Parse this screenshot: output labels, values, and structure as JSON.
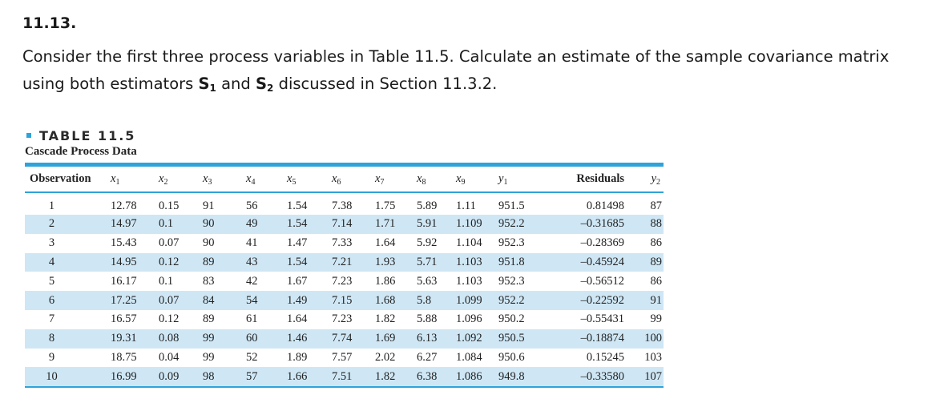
{
  "problem": {
    "number": "11.13.",
    "line1": "Consider the first three process variables in Table 11.5. Calculate an estimate of the sample covariance matrix",
    "line2_prefix": "using both estimators ",
    "s1_letter": "S",
    "s1_sub": "1",
    "line2_and": " and ",
    "s2_letter": "S",
    "s2_sub": "2",
    "line2_suffix": " discussed in Section 11.3.2."
  },
  "table": {
    "title": "TABLE 11.5",
    "caption": "Cascade Process Data",
    "accent_color": "#2ea3d9",
    "stripe_color": "#cfe7f5",
    "headers": {
      "observation": "Observation",
      "x1": "x",
      "x1_sub": "1",
      "x2": "x",
      "x2_sub": "2",
      "x3": "x",
      "x3_sub": "3",
      "x4": "x",
      "x4_sub": "4",
      "x5": "x",
      "x5_sub": "5",
      "x6": "x",
      "x6_sub": "6",
      "x7": "x",
      "x7_sub": "7",
      "x8": "x",
      "x8_sub": "8",
      "x9": "x",
      "x9_sub": "9",
      "y1": "y",
      "y1_sub": "1",
      "residuals": "Residuals",
      "y2": "y",
      "y2_sub": "2"
    },
    "rows": [
      {
        "obs": "1",
        "x1": "12.78",
        "x2": "0.15",
        "x3": "91",
        "x4": "56",
        "x5": "1.54",
        "x6": "7.38",
        "x7": "1.75",
        "x8": "5.89",
        "x9": "1.11",
        "y1": "951.5",
        "res": "0.81498",
        "y2": "87"
      },
      {
        "obs": "2",
        "x1": "14.97",
        "x2": "0.1",
        "x3": "90",
        "x4": "49",
        "x5": "1.54",
        "x6": "7.14",
        "x7": "1.71",
        "x8": "5.91",
        "x9": "1.109",
        "y1": "952.2",
        "res": "–0.31685",
        "y2": "88"
      },
      {
        "obs": "3",
        "x1": "15.43",
        "x2": "0.07",
        "x3": "90",
        "x4": "41",
        "x5": "1.47",
        "x6": "7.33",
        "x7": "1.64",
        "x8": "5.92",
        "x9": "1.104",
        "y1": "952.3",
        "res": "–0.28369",
        "y2": "86"
      },
      {
        "obs": "4",
        "x1": "14.95",
        "x2": "0.12",
        "x3": "89",
        "x4": "43",
        "x5": "1.54",
        "x6": "7.21",
        "x7": "1.93",
        "x8": "5.71",
        "x9": "1.103",
        "y1": "951.8",
        "res": "–0.45924",
        "y2": "89"
      },
      {
        "obs": "5",
        "x1": "16.17",
        "x2": "0.1",
        "x3": "83",
        "x4": "42",
        "x5": "1.67",
        "x6": "7.23",
        "x7": "1.86",
        "x8": "5.63",
        "x9": "1.103",
        "y1": "952.3",
        "res": "–0.56512",
        "y2": "86"
      },
      {
        "obs": "6",
        "x1": "17.25",
        "x2": "0.07",
        "x3": "84",
        "x4": "54",
        "x5": "1.49",
        "x6": "7.15",
        "x7": "1.68",
        "x8": "5.8",
        "x9": "1.099",
        "y1": "952.2",
        "res": "–0.22592",
        "y2": "91"
      },
      {
        "obs": "7",
        "x1": "16.57",
        "x2": "0.12",
        "x3": "89",
        "x4": "61",
        "x5": "1.64",
        "x6": "7.23",
        "x7": "1.82",
        "x8": "5.88",
        "x9": "1.096",
        "y1": "950.2",
        "res": "–0.55431",
        "y2": "99"
      },
      {
        "obs": "8",
        "x1": "19.31",
        "x2": "0.08",
        "x3": "99",
        "x4": "60",
        "x5": "1.46",
        "x6": "7.74",
        "x7": "1.69",
        "x8": "6.13",
        "x9": "1.092",
        "y1": "950.5",
        "res": "–0.18874",
        "y2": "100"
      },
      {
        "obs": "9",
        "x1": "18.75",
        "x2": "0.04",
        "x3": "99",
        "x4": "52",
        "x5": "1.89",
        "x6": "7.57",
        "x7": "2.02",
        "x8": "6.27",
        "x9": "1.084",
        "y1": "950.6",
        "res": "0.15245",
        "y2": "103"
      },
      {
        "obs": "10",
        "x1": "16.99",
        "x2": "0.09",
        "x3": "98",
        "x4": "57",
        "x5": "1.66",
        "x6": "7.51",
        "x7": "1.82",
        "x8": "6.38",
        "x9": "1.086",
        "y1": "949.8",
        "res": "–0.33580",
        "y2": "107"
      }
    ]
  }
}
